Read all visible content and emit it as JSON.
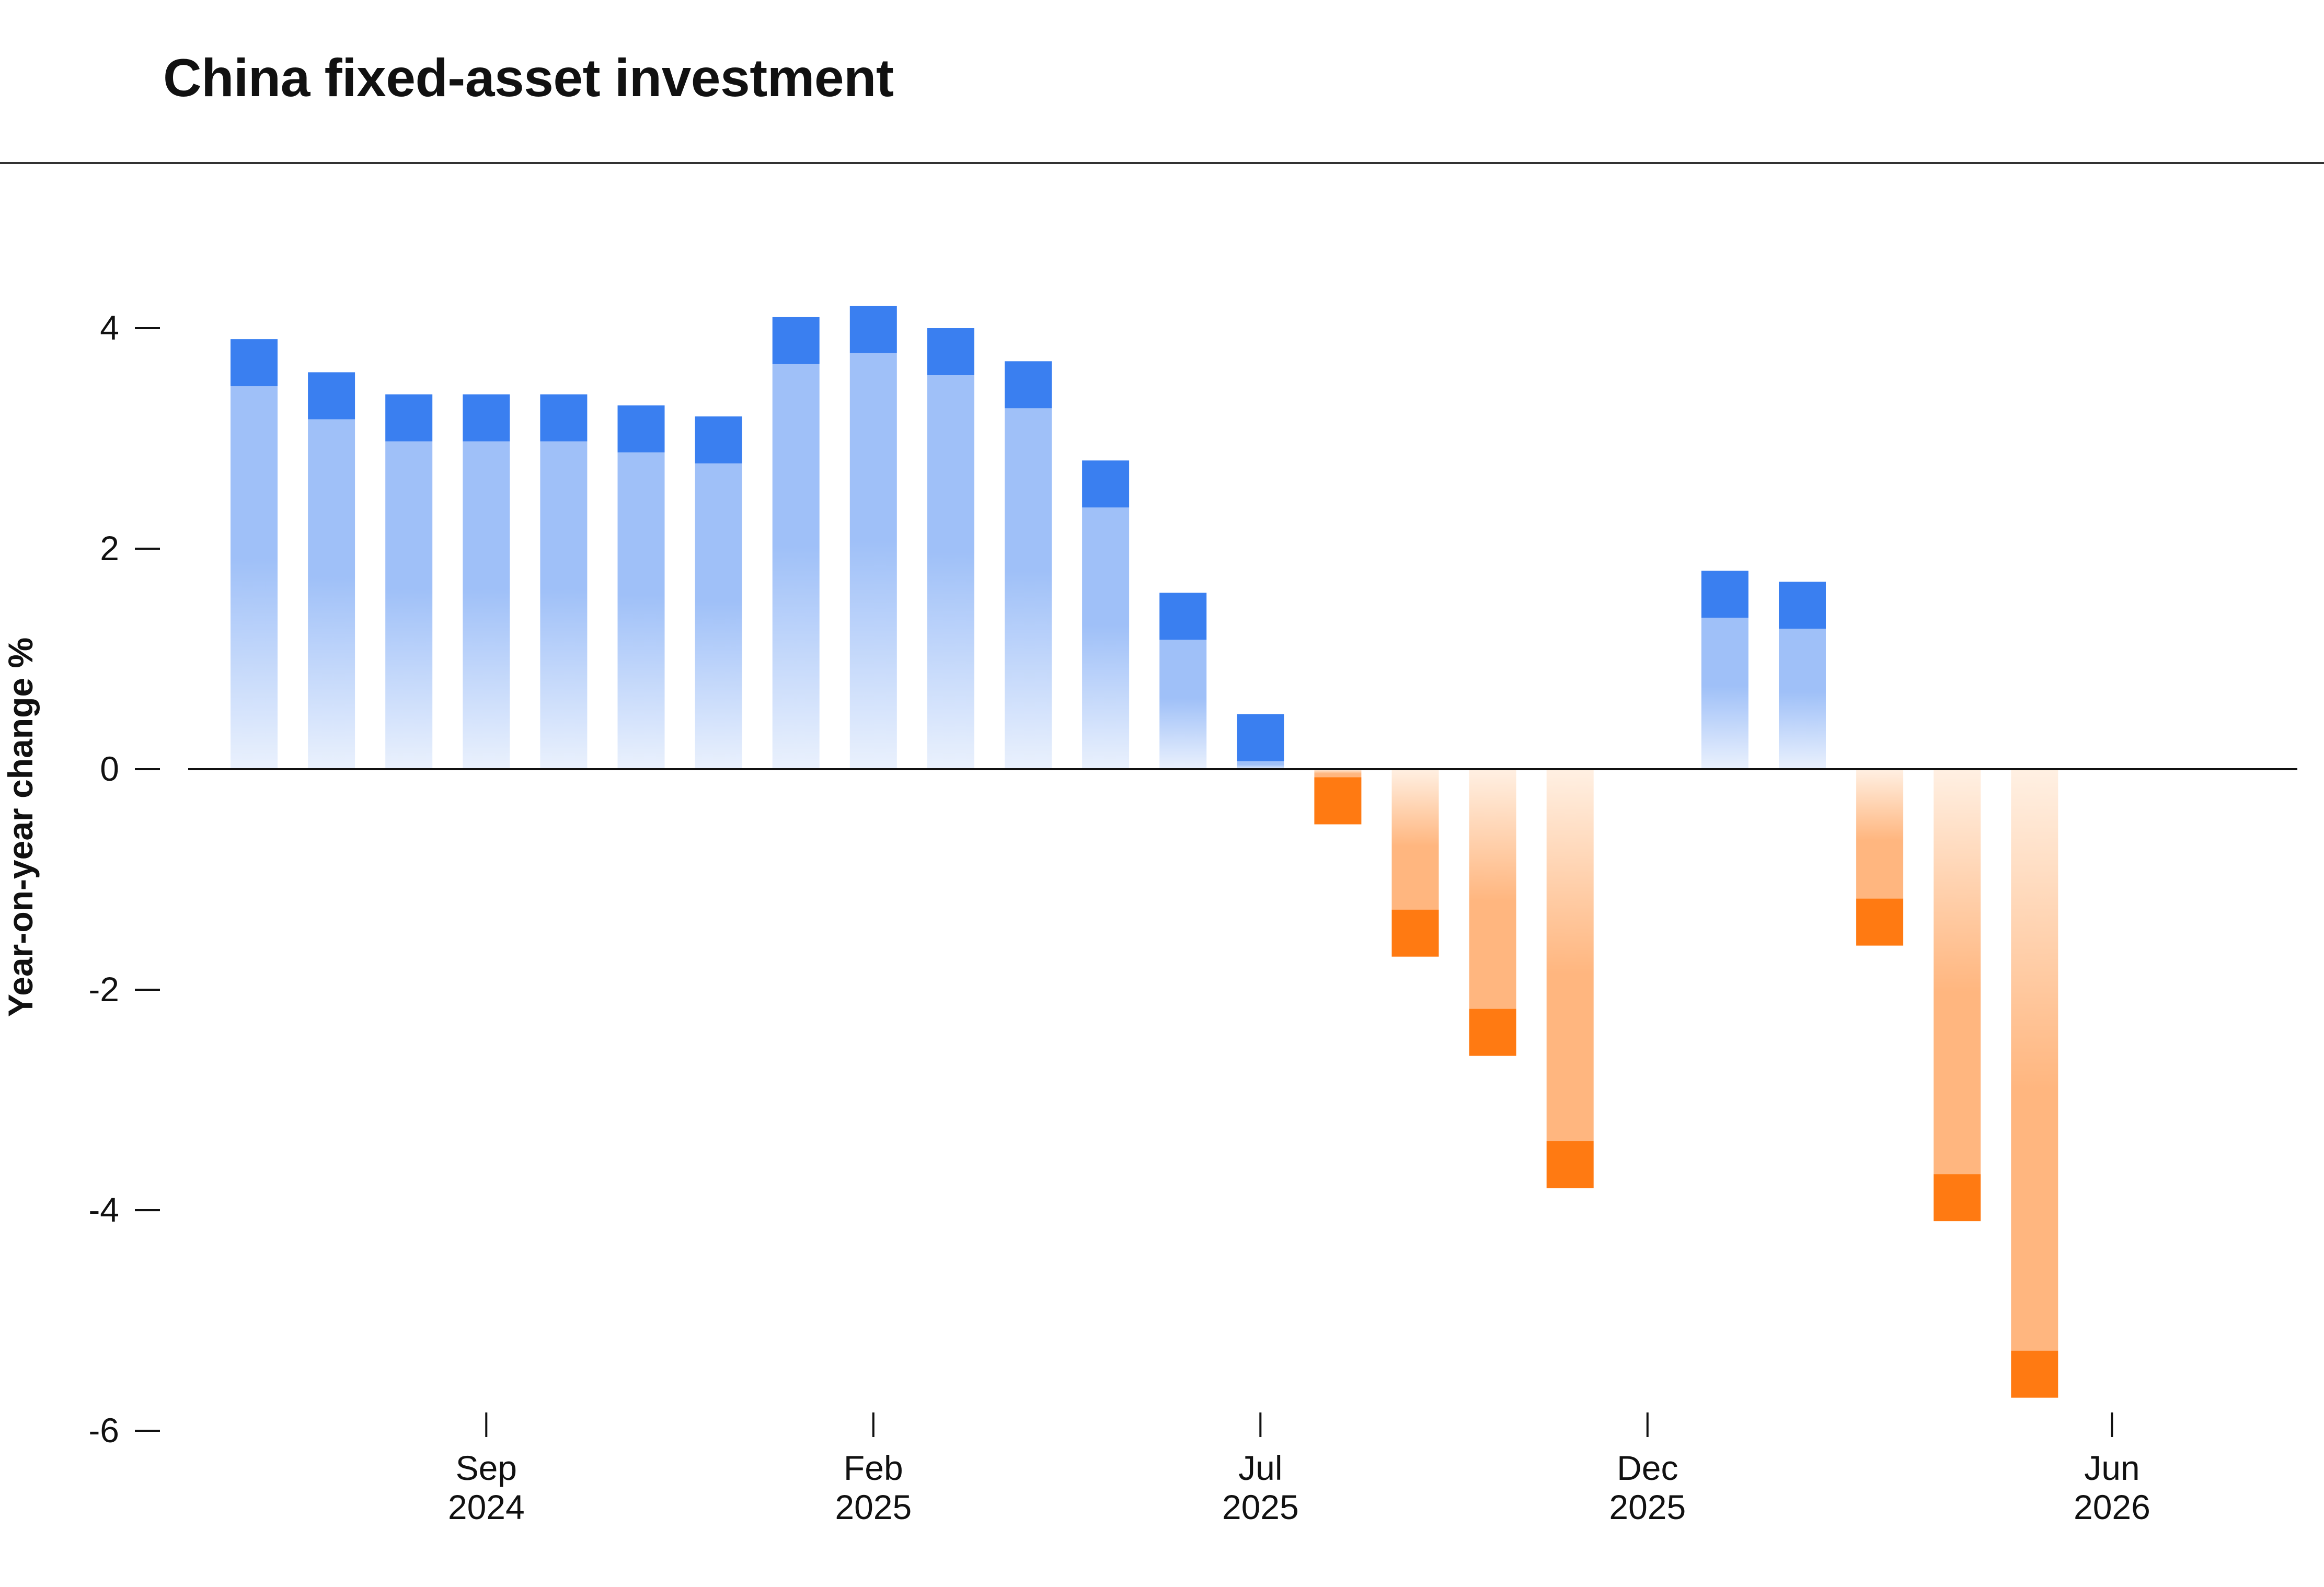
{
  "chart_data": {
    "type": "bar",
    "title": "China fixed-asset investment",
    "ylabel": "Year-on-year change %",
    "xlabel": "",
    "ylim": [
      -6,
      4.7
    ],
    "yticks": [
      4,
      2,
      0,
      -2,
      -4,
      -6
    ],
    "ytick_labels": [
      "4",
      "2",
      "0",
      "-2",
      "-4",
      "-6"
    ],
    "categories": [
      "Jun 2024",
      "Jul 2024",
      "Aug 2024",
      "Sep 2024",
      "Oct 2024",
      "Nov 2024",
      "Dec 2024",
      "Jan 2025",
      "Feb 2025",
      "Mar 2025",
      "Apr 2025",
      "May 2025",
      "Jun 2025",
      "Jul 2025",
      "Aug 2025",
      "Sep 2025",
      "Oct 2025",
      "Nov 2025",
      "Dec 2025",
      "Jan 2026",
      "Feb 2026",
      "Mar 2026",
      "Apr 2026",
      "May 2026",
      "Jun 2026"
    ],
    "values": [
      3.9,
      3.6,
      3.4,
      3.4,
      3.4,
      3.3,
      3.2,
      4.1,
      4.2,
      4.0,
      3.7,
      2.8,
      1.6,
      0.5,
      -0.5,
      -1.7,
      -2.6,
      -3.8,
      null,
      1.8,
      1.7,
      -1.6,
      -4.1,
      -5.7,
      null
    ],
    "xtick_labels": [
      {
        "month": "Sep",
        "year": "2024"
      },
      {
        "month": "Feb",
        "year": "2025"
      },
      {
        "month": "Jul",
        "year": "2025"
      },
      {
        "month": "Dec",
        "year": "2025"
      },
      {
        "month": "Jun",
        "year": "2026"
      }
    ],
    "colors": {
      "positive_cap": "#3a7ff0",
      "positive_body": "#9fc0f8",
      "positive_fade": "#eaf1fd",
      "negative_cap": "#ff7a12",
      "negative_body": "#ffb67f",
      "negative_fade": "#fff0e3",
      "axis": "#111111"
    }
  }
}
